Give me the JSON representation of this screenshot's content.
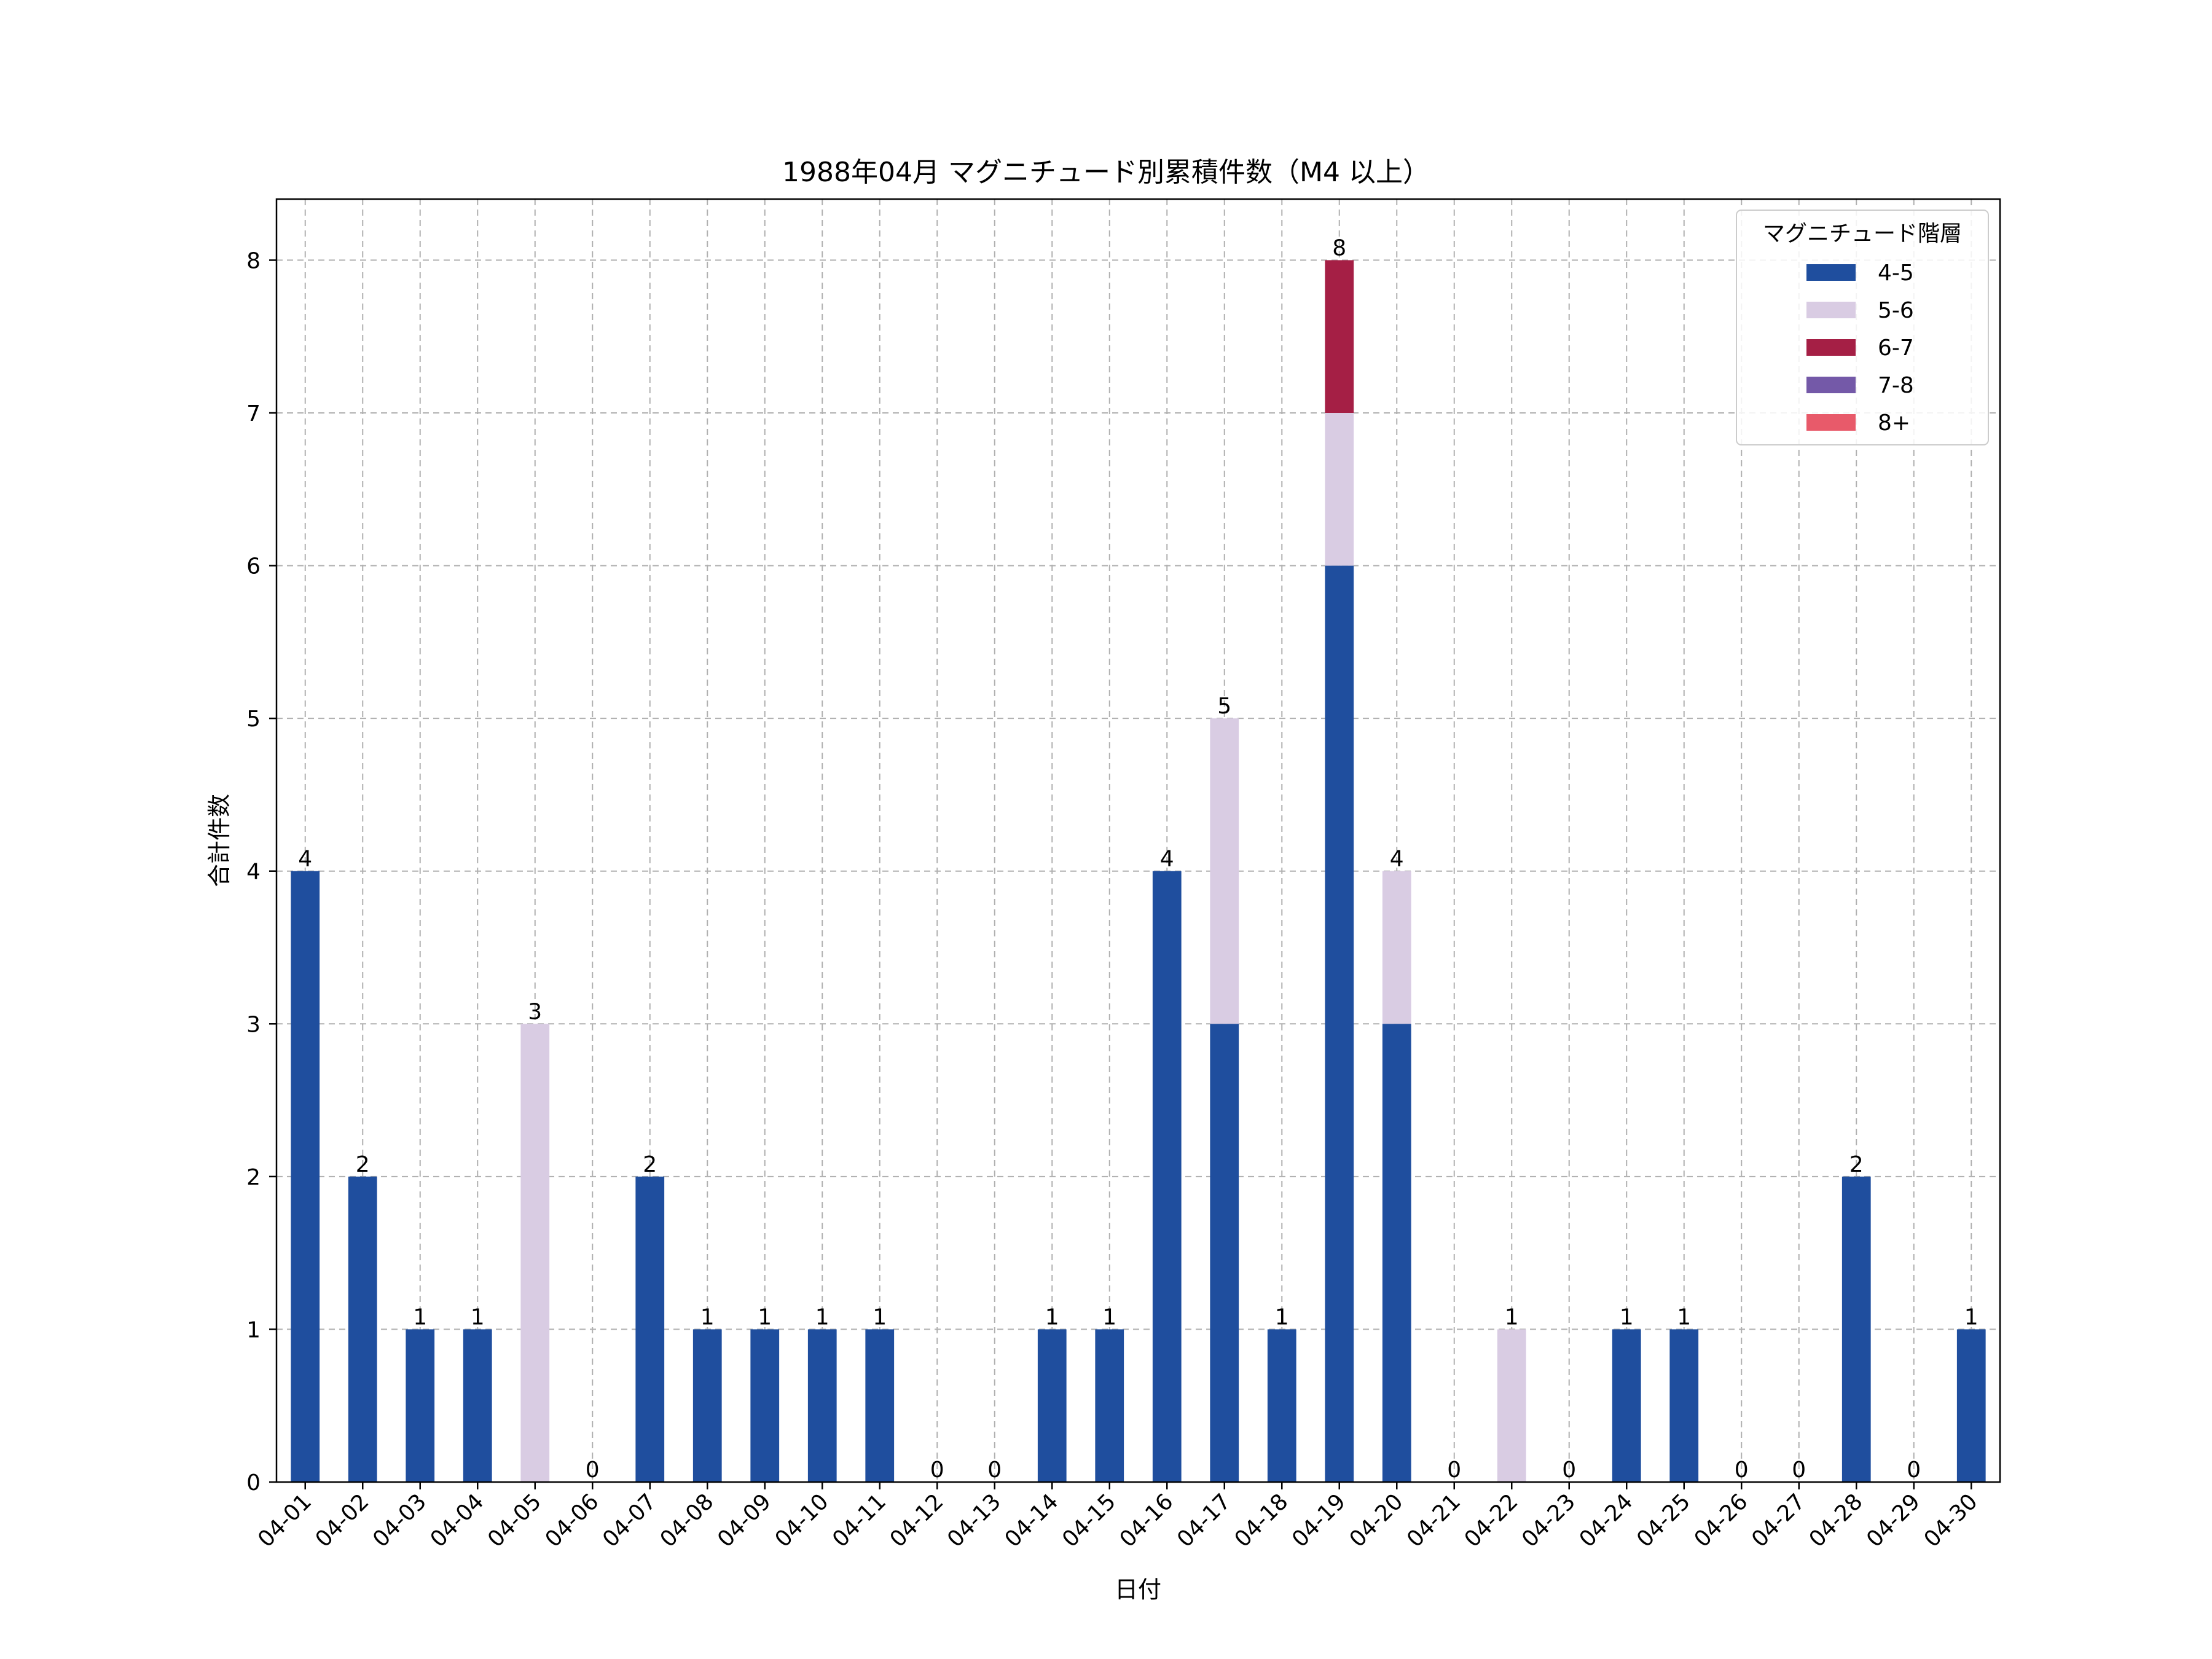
{
  "chart_data": {
    "type": "bar",
    "stacked": true,
    "title": "1988年04月 マグニチュード別累積件数（M4 以上）",
    "xlabel": "日付",
    "ylabel": "合計件数",
    "ylim": [
      0,
      8.4
    ],
    "yticks": [
      0,
      1,
      2,
      3,
      4,
      5,
      6,
      7,
      8
    ],
    "grid": true,
    "legend_title": "マグニチュード階層",
    "legend_position": "top-right",
    "categories": [
      "04-01",
      "04-02",
      "04-03",
      "04-04",
      "04-05",
      "04-06",
      "04-07",
      "04-08",
      "04-09",
      "04-10",
      "04-11",
      "04-12",
      "04-13",
      "04-14",
      "04-15",
      "04-16",
      "04-17",
      "04-18",
      "04-19",
      "04-20",
      "04-21",
      "04-22",
      "04-23",
      "04-24",
      "04-25",
      "04-26",
      "04-27",
      "04-28",
      "04-29",
      "04-30"
    ],
    "series": [
      {
        "name": "4-5",
        "color": "#1f4e9e",
        "values": [
          4,
          2,
          1,
          1,
          0,
          0,
          2,
          1,
          1,
          1,
          1,
          0,
          0,
          1,
          1,
          4,
          3,
          1,
          6,
          3,
          0,
          0,
          0,
          1,
          1,
          0,
          0,
          2,
          0,
          1
        ]
      },
      {
        "name": "5-6",
        "color": "#d9cce3",
        "values": [
          0,
          0,
          0,
          0,
          3,
          0,
          0,
          0,
          0,
          0,
          0,
          0,
          0,
          0,
          0,
          0,
          2,
          0,
          1,
          1,
          0,
          1,
          0,
          0,
          0,
          0,
          0,
          0,
          0,
          0
        ]
      },
      {
        "name": "6-7",
        "color": "#a51f45",
        "values": [
          0,
          0,
          0,
          0,
          0,
          0,
          0,
          0,
          0,
          0,
          0,
          0,
          0,
          0,
          0,
          0,
          0,
          0,
          1,
          0,
          0,
          0,
          0,
          0,
          0,
          0,
          0,
          0,
          0,
          0
        ]
      },
      {
        "name": "7-8",
        "color": "#7459a8",
        "values": [
          0,
          0,
          0,
          0,
          0,
          0,
          0,
          0,
          0,
          0,
          0,
          0,
          0,
          0,
          0,
          0,
          0,
          0,
          0,
          0,
          0,
          0,
          0,
          0,
          0,
          0,
          0,
          0,
          0,
          0
        ]
      },
      {
        "name": "8+",
        "color": "#e85a6a",
        "values": [
          0,
          0,
          0,
          0,
          0,
          0,
          0,
          0,
          0,
          0,
          0,
          0,
          0,
          0,
          0,
          0,
          0,
          0,
          0,
          0,
          0,
          0,
          0,
          0,
          0,
          0,
          0,
          0,
          0,
          0
        ]
      }
    ],
    "totals": [
      4,
      2,
      1,
      1,
      3,
      0,
      2,
      1,
      1,
      1,
      1,
      0,
      0,
      1,
      1,
      4,
      5,
      1,
      8,
      4,
      0,
      1,
      0,
      1,
      1,
      0,
      0,
      2,
      0,
      1
    ]
  }
}
